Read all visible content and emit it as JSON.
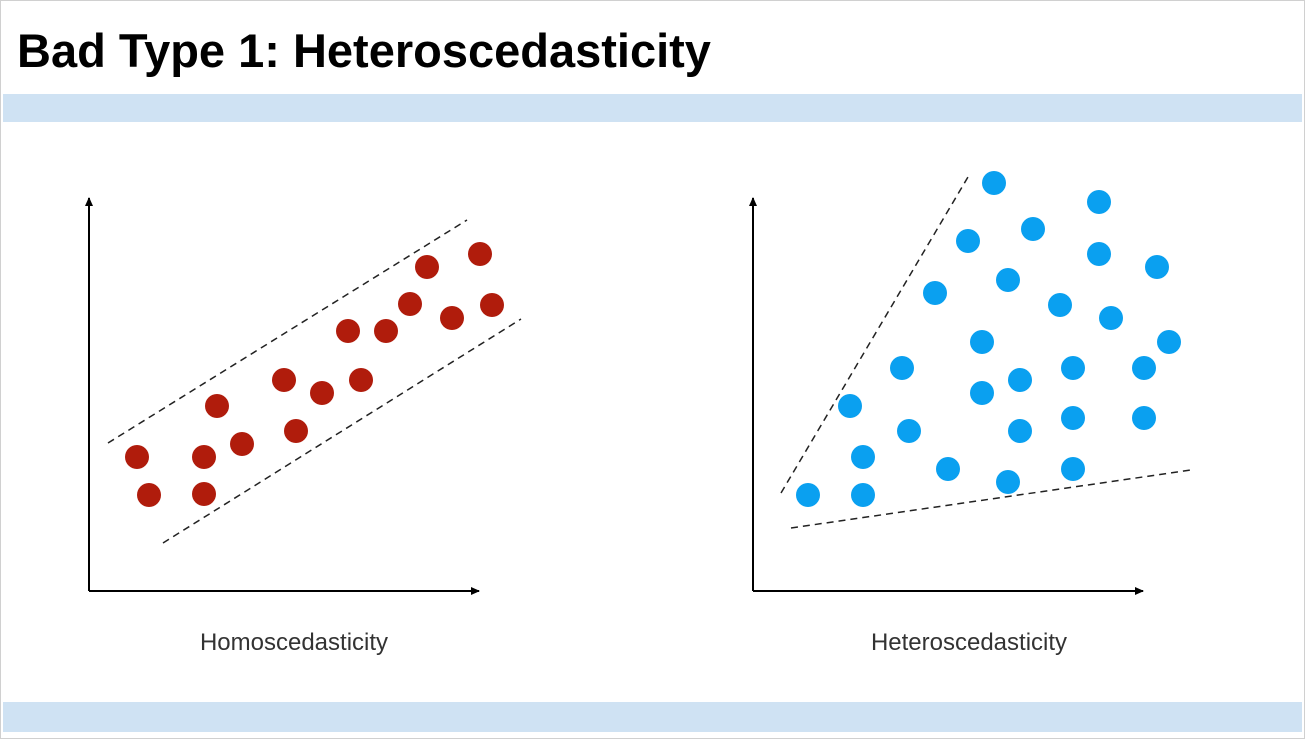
{
  "header": {
    "title": "Bad Type 1: Heteroscedasticity"
  },
  "panels": [
    {
      "caption": "Homoscedasticity"
    },
    {
      "caption": "Heteroscedasticity"
    }
  ]
}
